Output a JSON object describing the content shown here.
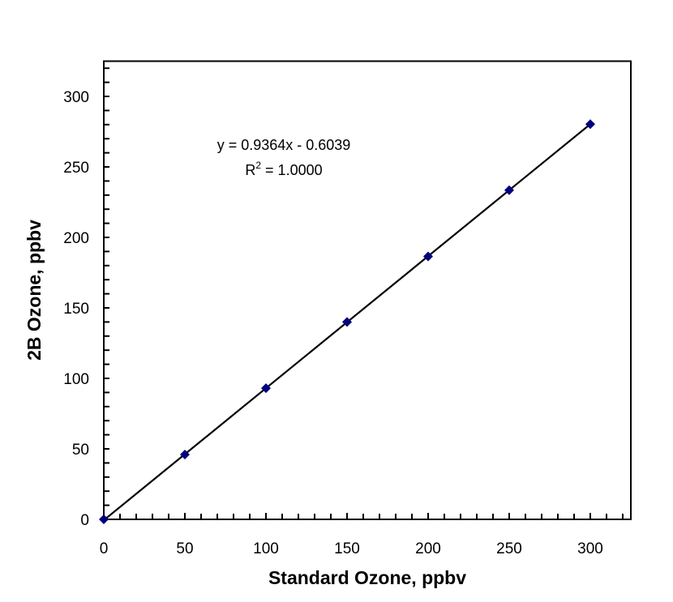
{
  "chart_data": {
    "type": "scatter",
    "xlabel": "Standard Ozone, ppbv",
    "ylabel": "2B Ozone, ppbv",
    "xlim": [
      0,
      325
    ],
    "ylim": [
      0,
      325
    ],
    "xticks": [
      0,
      50,
      100,
      150,
      200,
      250,
      300
    ],
    "yticks": [
      0,
      50,
      100,
      150,
      200,
      250,
      300
    ],
    "minor_tick_step": 10,
    "grid": false,
    "marker": "diamond",
    "marker_color": "#000080",
    "series": [
      {
        "x": [
          0,
          50,
          100,
          150,
          200,
          250,
          300
        ],
        "y": [
          0,
          46,
          93,
          140,
          186.5,
          233.5,
          280.3
        ]
      }
    ],
    "trendline": {
      "slope": 0.9364,
      "intercept": -0.6039,
      "x_range": [
        0,
        300
      ],
      "color": "#000000"
    },
    "annotations": {
      "equation": "y = 0.9364x - 0.6039",
      "r2_prefix": "R",
      "r2_sup": "2",
      "r2_value": " = 1.0000"
    }
  }
}
